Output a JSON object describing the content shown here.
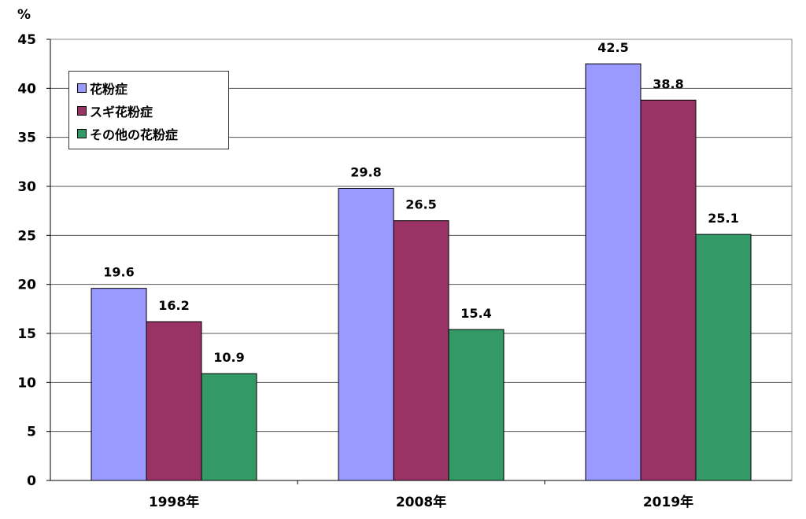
{
  "chart_data": {
    "type": "bar",
    "y_unit": "%",
    "categories": [
      "1998年",
      "2008年",
      "2019年"
    ],
    "series": [
      {
        "name": "花粉症",
        "color": "#9999ff",
        "values": [
          19.6,
          29.8,
          42.5
        ]
      },
      {
        "name": "スギ花粉症",
        "color": "#993366",
        "values": [
          16.2,
          26.5,
          38.8
        ]
      },
      {
        "name": "その他の花粉症",
        "color": "#339966",
        "values": [
          10.9,
          15.4,
          25.1
        ]
      }
    ],
    "ylim": [
      0,
      45
    ],
    "yticks": [
      0,
      5,
      10,
      15,
      20,
      25,
      30,
      35,
      40,
      45
    ],
    "grid": true,
    "legend_position": "top-left",
    "data_labels": true
  }
}
